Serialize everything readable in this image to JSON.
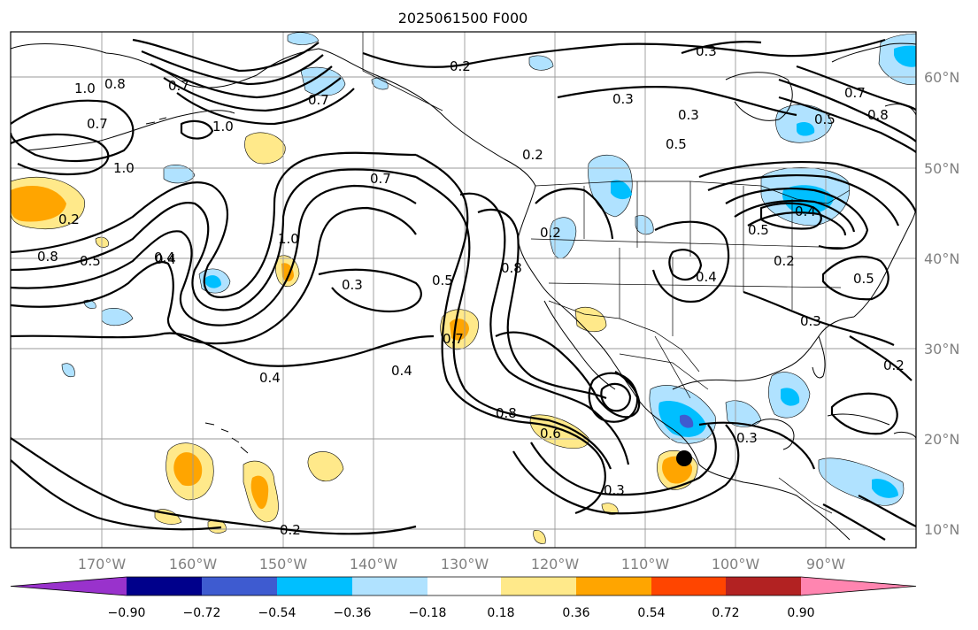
{
  "title": "2025061500 F000",
  "lat_labels": [
    "60°N",
    "50°N",
    "40°N",
    "30°N",
    "20°N",
    "10°N"
  ],
  "lon_labels": [
    "170°W",
    "160°W",
    "150°W",
    "140°W",
    "130°W",
    "120°W",
    "110°W",
    "100°W",
    "90°W"
  ],
  "colorbar": {
    "colors": [
      "#9932cc",
      "#00008b",
      "#3e5bd0",
      "#00bfff",
      "#b0e2ff",
      "#ffffff",
      "#ffe98a",
      "#ffa500",
      "#ff4500",
      "#b22222",
      "#ff85b0"
    ],
    "tick_labels": [
      "−0.90",
      "−0.72",
      "−0.54",
      "−0.36",
      "−0.18",
      "0.18",
      "0.36",
      "0.54",
      "0.72",
      "0.90"
    ]
  },
  "contour_labels": [
    {
      "text": "0.2"
    },
    {
      "text": "0.3"
    },
    {
      "text": "0.7"
    },
    {
      "text": "1.0"
    },
    {
      "text": "0.8"
    },
    {
      "text": "0.7"
    },
    {
      "text": "1.0"
    },
    {
      "text": "1.0"
    },
    {
      "text": "0.7"
    },
    {
      "text": "0.3"
    },
    {
      "text": "0.4"
    },
    {
      "text": "0.5"
    },
    {
      "text": "0.2"
    },
    {
      "text": "0.7"
    },
    {
      "text": "1.0"
    },
    {
      "text": "0.2"
    },
    {
      "text": "0.8"
    },
    {
      "text": "0.5"
    },
    {
      "text": "0.4"
    },
    {
      "text": "0.3"
    },
    {
      "text": "0.5"
    },
    {
      "text": "0.8"
    },
    {
      "text": "0.7"
    },
    {
      "text": "0.4"
    },
    {
      "text": "0.4"
    },
    {
      "text": "0.8"
    },
    {
      "text": "0.6"
    },
    {
      "text": "0.3"
    },
    {
      "text": "0.2"
    },
    {
      "text": "0.4"
    },
    {
      "text": "0.2"
    },
    {
      "text": "0.3"
    },
    {
      "text": "0.5"
    },
    {
      "text": "0.3"
    },
    {
      "text": "0.2"
    },
    {
      "text": "0.7"
    },
    {
      "text": "0.8"
    },
    {
      "text": "0.2"
    },
    {
      "text": "0.5"
    },
    {
      "text": "0.4"
    },
    {
      "text": "0.5"
    },
    {
      "text": "0.3"
    }
  ]
}
